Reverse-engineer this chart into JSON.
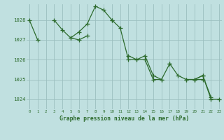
{
  "title": "Graphe pression niveau de la mer (hPa)",
  "bg_color": "#c0e0e0",
  "grid_color": "#9bbfbf",
  "line_color": "#2d6b2d",
  "xlim": [
    -0.3,
    23.3
  ],
  "ylim": [
    1023.5,
    1028.8
  ],
  "yticks": [
    1024,
    1025,
    1026,
    1027,
    1028
  ],
  "xticks": [
    0,
    1,
    2,
    3,
    4,
    5,
    6,
    7,
    8,
    9,
    10,
    11,
    12,
    13,
    14,
    15,
    16,
    17,
    18,
    19,
    20,
    21,
    22,
    23
  ],
  "series": [
    [
      0,
      1028.0
    ],
    [
      1,
      1027.0
    ],
    [
      3,
      1028.0
    ],
    [
      4,
      1027.5
    ],
    [
      5,
      1027.1
    ],
    [
      6,
      1027.0
    ],
    [
      7,
      1027.2
    ],
    [
      10,
      1028.0
    ],
    [
      11,
      1027.6
    ],
    [
      12,
      1026.0
    ],
    [
      13,
      1026.0
    ],
    [
      14,
      1026.0
    ],
    [
      15,
      1025.0
    ],
    [
      16,
      1025.0
    ],
    [
      20,
      1025.0
    ],
    [
      21,
      1025.2
    ],
    [
      22,
      1024.0
    ],
    [
      23,
      1024.0
    ]
  ],
  "series2": [
    [
      5,
      1027.1
    ],
    [
      6,
      1027.4
    ],
    [
      7,
      1027.8
    ],
    [
      8,
      1028.7
    ],
    [
      9,
      1028.5
    ],
    [
      10,
      1028.0
    ],
    [
      12,
      1026.2
    ],
    [
      13,
      1026.0
    ],
    [
      14,
      1026.2
    ],
    [
      15,
      1025.2
    ],
    [
      16,
      1025.0
    ],
    [
      17,
      1025.8
    ],
    [
      19,
      1025.0
    ],
    [
      20,
      1025.0
    ],
    [
      21,
      1025.2
    ],
    [
      22,
      1024.1
    ]
  ],
  "series3": [
    [
      17,
      1025.8
    ],
    [
      18,
      1025.2
    ],
    [
      19,
      1025.0
    ],
    [
      20,
      1025.0
    ],
    [
      21,
      1025.0
    ]
  ],
  "series1_segments": [
    [
      [
        0,
        1
      ],
      [
        1028.0,
        1027.0
      ]
    ],
    [
      [
        3,
        4,
        5,
        6,
        7
      ],
      [
        1028.0,
        1027.5,
        1027.1,
        1027.0,
        1027.2
      ]
    ],
    [
      [
        10,
        11,
        12,
        13,
        14,
        15,
        16
      ],
      [
        1028.0,
        1027.6,
        1026.0,
        1026.0,
        1026.0,
        1025.0,
        1025.0
      ]
    ],
    [
      [
        20,
        21,
        22,
        23
      ],
      [
        1025.0,
        1025.2,
        1024.0,
        1024.0
      ]
    ]
  ],
  "series2_segments": [
    [
      [
        5,
        6,
        7,
        8,
        9,
        10
      ],
      [
        1027.1,
        1027.4,
        1027.8,
        1028.7,
        1028.5,
        1028.0
      ]
    ],
    [
      [
        12,
        13,
        14,
        15,
        16,
        17
      ],
      [
        1026.2,
        1026.0,
        1026.2,
        1025.2,
        1025.0,
        1025.8
      ]
    ],
    [
      [
        19,
        20,
        21,
        22
      ],
      [
        1025.0,
        1025.0,
        1025.2,
        1024.1
      ]
    ]
  ],
  "series3_segments": [
    [
      [
        17,
        18,
        19,
        20,
        21
      ],
      [
        1025.8,
        1025.2,
        1025.0,
        1025.0,
        1025.0
      ]
    ]
  ]
}
